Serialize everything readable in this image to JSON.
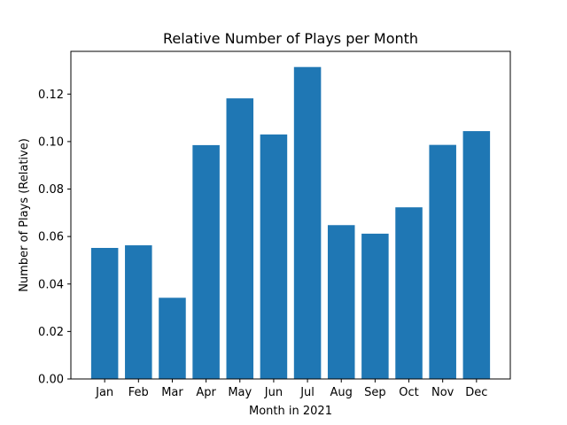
{
  "chart_data": {
    "type": "bar",
    "title": "Relative Number of Plays per Month",
    "xlabel": "Month in 2021",
    "ylabel": "Number of Plays (Relative)",
    "categories": [
      "Jan",
      "Feb",
      "Mar",
      "Apr",
      "May",
      "Jun",
      "Jul",
      "Aug",
      "Sep",
      "Oct",
      "Nov",
      "Dec"
    ],
    "values": [
      0.0552,
      0.0563,
      0.0342,
      0.0985,
      0.1182,
      0.103,
      0.1314,
      0.0648,
      0.0612,
      0.0723,
      0.0986,
      0.1044
    ],
    "ylim": [
      0,
      0.138
    ],
    "yticks": [
      0.0,
      0.02,
      0.04,
      0.06,
      0.08,
      0.1,
      0.12
    ],
    "ytick_labels": [
      "0.00",
      "0.02",
      "0.04",
      "0.06",
      "0.08",
      "0.10",
      "0.12"
    ],
    "grid": false,
    "bar_color": "#1f77b4"
  }
}
